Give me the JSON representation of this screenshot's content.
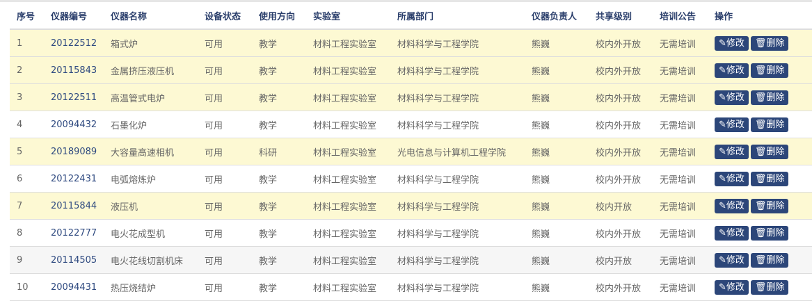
{
  "headers": [
    "序号",
    "仪器编号",
    "仪器名称",
    "设备状态",
    "使用方向",
    "实验室",
    "所属部门",
    "仪器负责人",
    "共享级别",
    "培训公告",
    "操作"
  ],
  "actions": {
    "edit": "修改",
    "delete": "删除",
    "edit_icon": "edit-icon",
    "delete_icon": "trash-icon"
  },
  "colors": {
    "highlight": "#fdf9d3",
    "button": "#2c4679"
  },
  "rows": [
    {
      "no": "1",
      "code": "20122512",
      "name": "箱式炉",
      "status": "可用",
      "direction": "教学",
      "lab": "材料工程实验室",
      "dept": "材料科学与工程学院",
      "owner": "熊巍",
      "share": "校内外开放",
      "training": "无需培训",
      "style": "hl"
    },
    {
      "no": "2",
      "code": "20115843",
      "name": "金属挤压液压机",
      "status": "可用",
      "direction": "教学",
      "lab": "材料工程实验室",
      "dept": "材料科学与工程学院",
      "owner": "熊巍",
      "share": "校内外开放",
      "training": "无需培训",
      "style": "hl"
    },
    {
      "no": "3",
      "code": "20122511",
      "name": "高温管式电炉",
      "status": "可用",
      "direction": "教学",
      "lab": "材料工程实验室",
      "dept": "材料科学与工程学院",
      "owner": "熊巍",
      "share": "校内外开放",
      "training": "无需培训",
      "style": "hl"
    },
    {
      "no": "4",
      "code": "20094432",
      "name": "石墨化炉",
      "status": "可用",
      "direction": "教学",
      "lab": "材料工程实验室",
      "dept": "材料科学与工程学院",
      "owner": "熊巍",
      "share": "校内外开放",
      "training": "无需培训",
      "style": ""
    },
    {
      "no": "5",
      "code": "20189089",
      "name": "大容量高速相机",
      "status": "可用",
      "direction": "科研",
      "lab": "材料工程实验室",
      "dept": "光电信息与计算机工程学院",
      "owner": "熊巍",
      "share": "校内外开放",
      "training": "无需培训",
      "style": "hl"
    },
    {
      "no": "6",
      "code": "20122431",
      "name": "电弧熔炼炉",
      "status": "可用",
      "direction": "教学",
      "lab": "材料工程实验室",
      "dept": "材料科学与工程学院",
      "owner": "熊巍",
      "share": "校内外开放",
      "training": "无需培训",
      "style": ""
    },
    {
      "no": "7",
      "code": "20115844",
      "name": "液压机",
      "status": "可用",
      "direction": "教学",
      "lab": "材料工程实验室",
      "dept": "材料科学与工程学院",
      "owner": "熊巍",
      "share": "校内开放",
      "training": "无需培训",
      "style": "hl"
    },
    {
      "no": "8",
      "code": "20122777",
      "name": "电火花成型机",
      "status": "可用",
      "direction": "教学",
      "lab": "材料工程实验室",
      "dept": "材料科学与工程学院",
      "owner": "熊巍",
      "share": "校内外开放",
      "training": "无需培训",
      "style": ""
    },
    {
      "no": "9",
      "code": "20114505",
      "name": "电火花线切割机床",
      "status": "可用",
      "direction": "教学",
      "lab": "材料工程实验室",
      "dept": "材料科学与工程学院",
      "owner": "熊巍",
      "share": "校内开放",
      "training": "无需培训",
      "style": "gray"
    },
    {
      "no": "10",
      "code": "20094431",
      "name": "热压烧结炉",
      "status": "可用",
      "direction": "教学",
      "lab": "材料工程实验室",
      "dept": "材料科学与工程学院",
      "owner": "熊巍",
      "share": "校内外开放",
      "training": "无需培训",
      "style": ""
    }
  ]
}
